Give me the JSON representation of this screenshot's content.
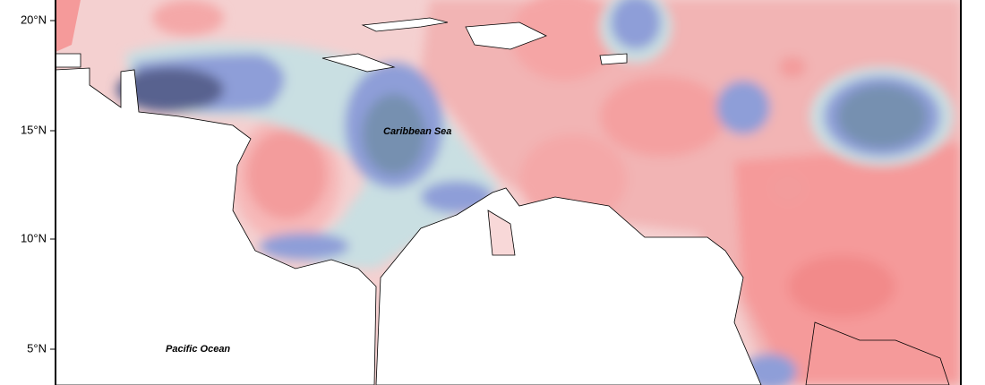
{
  "map": {
    "lat_labels": [
      "20°N",
      "15°N",
      "10°N",
      "5°N"
    ],
    "places": {
      "sea": "Caribbean Sea",
      "ocean": "Pacific Ocean"
    }
  }
}
